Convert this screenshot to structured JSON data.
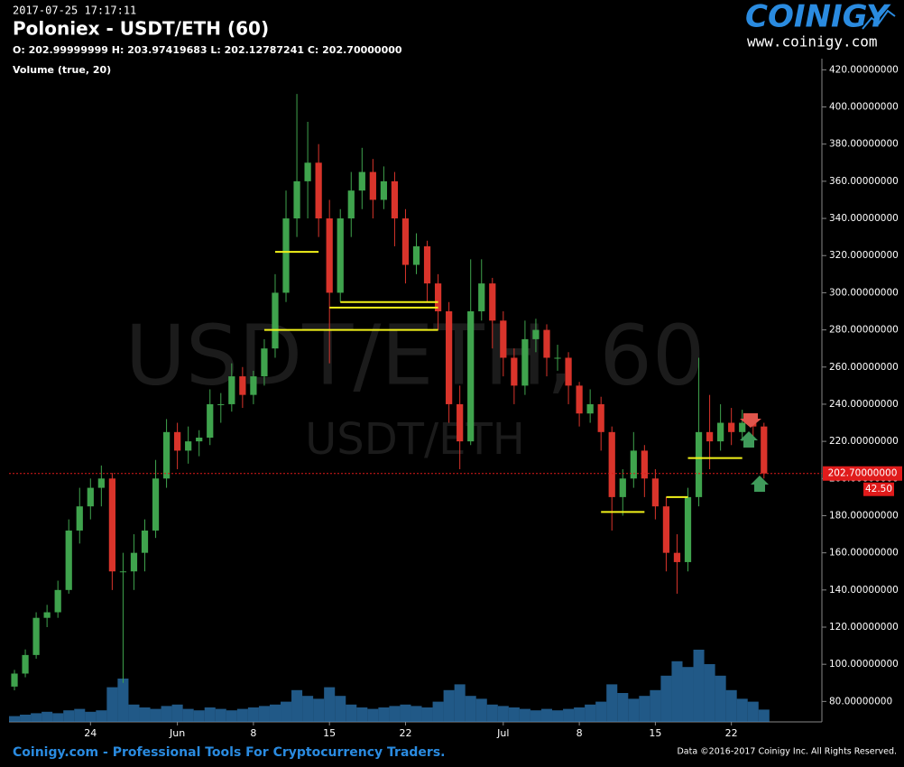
{
  "header": {
    "timestamp": "2017-07-25 17:17:11",
    "title": "Poloniex - USDT/ETH (60)",
    "ohlc": "O: 202.99999999 H: 203.97419683 L: 202.12787241 C: 202.70000000"
  },
  "logo": {
    "name": "COINIGY",
    "url": "www.coinigy.com"
  },
  "footer": {
    "left": "Coinigy.com - Professional Tools For Cryptocurrency Traders.",
    "right": "Data ©2016-2017 Coinigy Inc. All Rights Reserved."
  },
  "chart_data": {
    "type": "candlestick",
    "watermark": "USDT/ETH, 60",
    "watermark_sub": "USDT/ETH",
    "up_color": "#3fa34d",
    "down_color": "#d9342b",
    "x": [
      "2017-05-17",
      "2017-05-18",
      "2017-05-19",
      "2017-05-20",
      "2017-05-21",
      "2017-05-22",
      "2017-05-23",
      "2017-05-24",
      "2017-05-25",
      "2017-05-26",
      "2017-05-27",
      "2017-05-28",
      "2017-05-29",
      "2017-05-30",
      "2017-05-31",
      "2017-06-01",
      "2017-06-02",
      "2017-06-03",
      "2017-06-04",
      "2017-06-05",
      "2017-06-06",
      "2017-06-07",
      "2017-06-08",
      "2017-06-09",
      "2017-06-10",
      "2017-06-11",
      "2017-06-12",
      "2017-06-13",
      "2017-06-14",
      "2017-06-15",
      "2017-06-16",
      "2017-06-17",
      "2017-06-18",
      "2017-06-19",
      "2017-06-20",
      "2017-06-21",
      "2017-06-22",
      "2017-06-23",
      "2017-06-24",
      "2017-06-25",
      "2017-06-26",
      "2017-06-27",
      "2017-06-28",
      "2017-06-29",
      "2017-06-30",
      "2017-07-01",
      "2017-07-02",
      "2017-07-03",
      "2017-07-04",
      "2017-07-05",
      "2017-07-06",
      "2017-07-07",
      "2017-07-08",
      "2017-07-09",
      "2017-07-10",
      "2017-07-11",
      "2017-07-12",
      "2017-07-13",
      "2017-07-14",
      "2017-07-15",
      "2017-07-16",
      "2017-07-17",
      "2017-07-18",
      "2017-07-19",
      "2017-07-20",
      "2017-07-21",
      "2017-07-22",
      "2017-07-23",
      "2017-07-24",
      "2017-07-25"
    ],
    "open": [
      88,
      95,
      105,
      125,
      128,
      140,
      172,
      185,
      195,
      200,
      150,
      150,
      160,
      172,
      200,
      225,
      215,
      220,
      222,
      240,
      240,
      255,
      245,
      255,
      270,
      300,
      340,
      360,
      370,
      340,
      300,
      340,
      355,
      365,
      350,
      360,
      340,
      315,
      325,
      305,
      290,
      240,
      220,
      290,
      305,
      285,
      265,
      250,
      275,
      280,
      265,
      265,
      250,
      235,
      240,
      225,
      190,
      200,
      215,
      200,
      185,
      160,
      155,
      190,
      225,
      220,
      230,
      225,
      230,
      228
    ],
    "high": [
      97,
      108,
      128,
      132,
      145,
      178,
      195,
      200,
      207,
      203,
      160,
      170,
      178,
      210,
      232,
      230,
      228,
      226,
      248,
      246,
      262,
      260,
      258,
      275,
      310,
      355,
      407,
      392,
      380,
      350,
      345,
      365,
      378,
      372,
      368,
      365,
      345,
      332,
      328,
      310,
      295,
      250,
      318,
      318,
      308,
      290,
      270,
      285,
      286,
      283,
      272,
      268,
      252,
      248,
      244,
      228,
      205,
      225,
      218,
      205,
      190,
      170,
      195,
      265,
      245,
      240,
      238,
      237,
      235,
      230
    ],
    "low": [
      86,
      93,
      103,
      120,
      125,
      138,
      165,
      178,
      185,
      140,
      90,
      140,
      150,
      168,
      195,
      205,
      208,
      212,
      218,
      230,
      236,
      238,
      240,
      250,
      265,
      295,
      330,
      340,
      330,
      262,
      295,
      330,
      345,
      340,
      345,
      325,
      305,
      310,
      295,
      280,
      230,
      205,
      218,
      285,
      270,
      255,
      240,
      245,
      268,
      255,
      258,
      240,
      228,
      230,
      215,
      172,
      180,
      195,
      190,
      178,
      150,
      138,
      150,
      185,
      205,
      215,
      218,
      220,
      222,
      200
    ],
    "close": [
      95,
      105,
      125,
      128,
      140,
      172,
      185,
      195,
      200,
      150,
      150,
      160,
      172,
      200,
      225,
      215,
      220,
      222,
      240,
      240,
      255,
      245,
      255,
      270,
      300,
      340,
      360,
      370,
      340,
      300,
      340,
      355,
      365,
      350,
      360,
      340,
      315,
      325,
      305,
      290,
      240,
      220,
      290,
      305,
      285,
      265,
      250,
      275,
      280,
      265,
      265,
      250,
      235,
      240,
      225,
      190,
      200,
      215,
      200,
      185,
      160,
      155,
      190,
      225,
      220,
      230,
      225,
      230,
      228,
      202.7
    ],
    "volume": {
      "name": "Volume (true, 20)",
      "color": "#2f7fc1",
      "values": [
        20,
        25,
        30,
        35,
        30,
        40,
        45,
        35,
        40,
        120,
        150,
        60,
        50,
        45,
        55,
        60,
        45,
        40,
        50,
        45,
        40,
        45,
        50,
        55,
        60,
        70,
        110,
        90,
        80,
        120,
        90,
        60,
        50,
        45,
        50,
        55,
        60,
        55,
        50,
        70,
        110,
        130,
        90,
        80,
        60,
        55,
        50,
        45,
        40,
        45,
        40,
        45,
        50,
        60,
        70,
        130,
        100,
        80,
        90,
        110,
        160,
        210,
        190,
        250,
        200,
        160,
        110,
        80,
        70,
        42.5
      ],
      "last_label": "42.50"
    },
    "last_price": {
      "value": 202.7,
      "label": "202.70000000"
    },
    "levels": [
      {
        "value": 322,
        "x0": "2017-06-10",
        "x1": "2017-06-14"
      },
      {
        "value": 280,
        "x0": "2017-06-09",
        "x1": "2017-06-25"
      },
      {
        "value": 292,
        "x0": "2017-06-15",
        "x1": "2017-06-25"
      },
      {
        "value": 295,
        "x0": "2017-06-16",
        "x1": "2017-06-25"
      },
      {
        "value": 182,
        "x0": "2017-07-10",
        "x1": "2017-07-14"
      },
      {
        "value": 190,
        "x0": "2017-07-16",
        "x1": "2017-07-18"
      },
      {
        "value": 211,
        "x0": "2017-07-18",
        "x1": "2017-07-23"
      }
    ],
    "level_color": "#f2f21a",
    "xlim": [
      "2017-05-16T12:00",
      "2017-07-30T06:00"
    ],
    "xticks": [
      {
        "value": "2017-05-24",
        "label": "24"
      },
      {
        "value": "2017-06-01",
        "label": "Jun"
      },
      {
        "value": "2017-06-08",
        "label": "8"
      },
      {
        "value": "2017-06-15",
        "label": "15"
      },
      {
        "value": "2017-06-22",
        "label": "22"
      },
      {
        "value": "2017-07-01",
        "label": "Jul"
      },
      {
        "value": "2017-07-08",
        "label": "8"
      },
      {
        "value": "2017-07-15",
        "label": "15"
      },
      {
        "value": "2017-07-22",
        "label": "22"
      }
    ],
    "ylim": [
      69,
      426
    ],
    "yticks": [
      {
        "value": 80,
        "label": "80.00000000"
      },
      {
        "value": 100,
        "label": "100.00000000"
      },
      {
        "value": 120,
        "label": "120.00000000"
      },
      {
        "value": 140,
        "label": "140.00000000"
      },
      {
        "value": 160,
        "label": "160.00000000"
      },
      {
        "value": 180,
        "label": "180.00000000"
      },
      {
        "value": 200,
        "label": "200.00000000"
      },
      {
        "value": 220,
        "label": "220.00000000"
      },
      {
        "value": 240,
        "label": "240.00000000"
      },
      {
        "value": 260,
        "label": "260.00000000"
      },
      {
        "value": 280,
        "label": "280.00000000"
      },
      {
        "value": 300,
        "label": "300.00000000"
      },
      {
        "value": 320,
        "label": "320.00000000"
      },
      {
        "value": 340,
        "label": "340.00000000"
      },
      {
        "value": 360,
        "label": "360.00000000"
      },
      {
        "value": 380,
        "label": "380.00000000"
      },
      {
        "value": 400,
        "label": "400.00000000"
      },
      {
        "value": 420,
        "label": "420.00000000"
      }
    ]
  }
}
